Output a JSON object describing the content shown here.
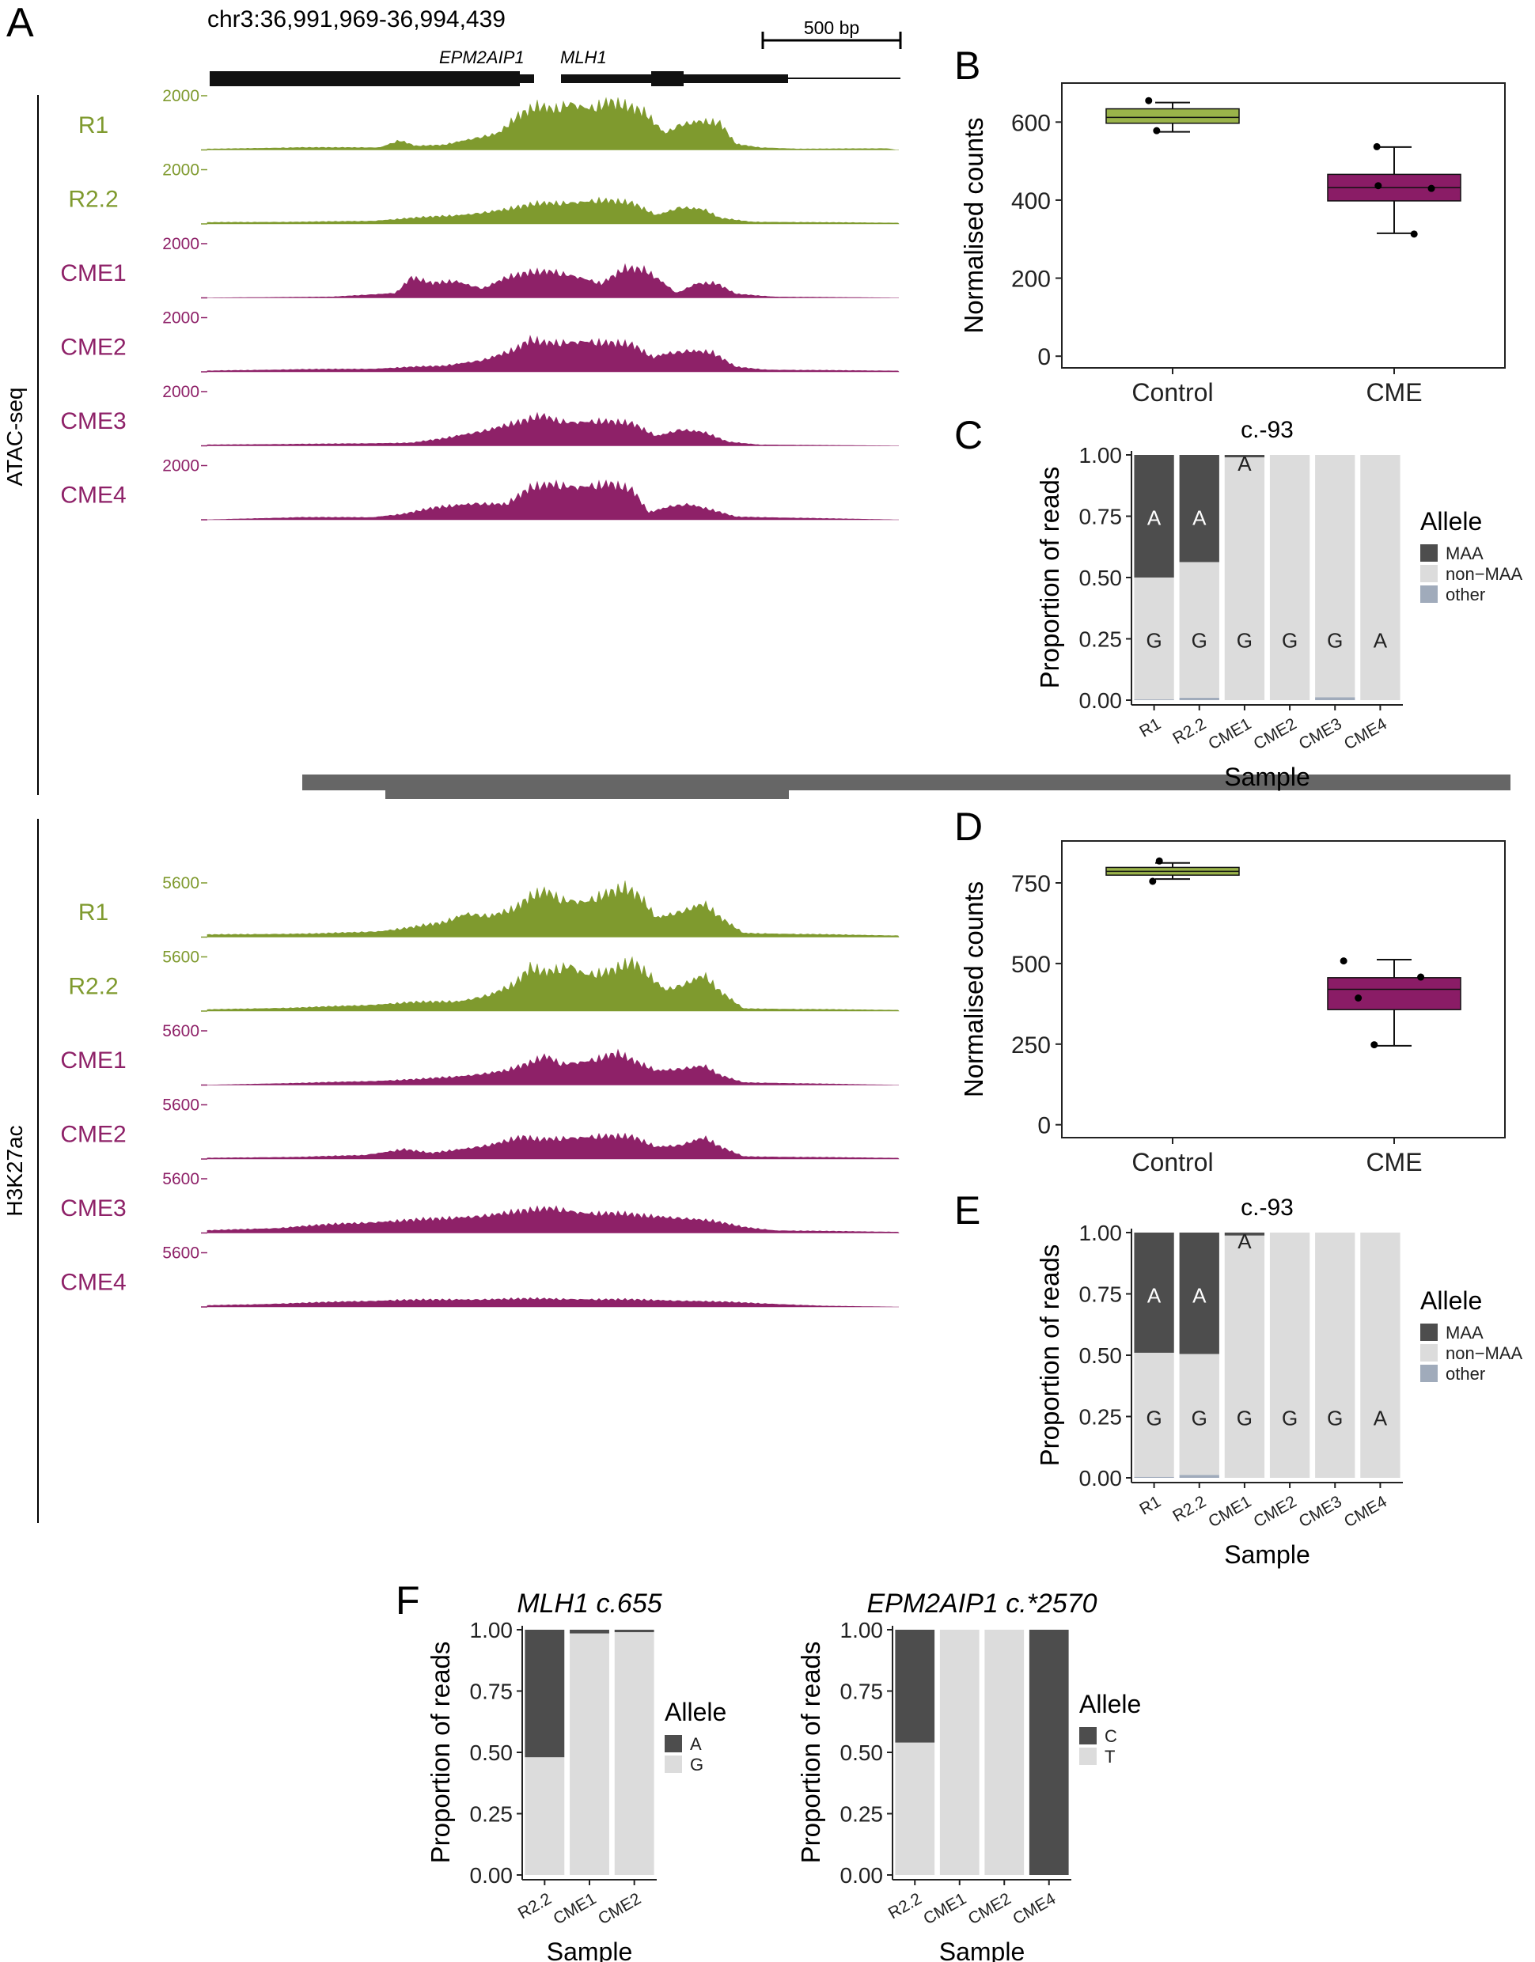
{
  "colors": {
    "control": "#7f9a2e",
    "cme": "#8e2168",
    "control_box": "#9ab34a",
    "cme_box": "#8a1c66",
    "maa": "#4d4d4d",
    "non_maa": "#dcdcdc",
    "other": "#a0abbb"
  },
  "panel_a": {
    "letter": "A",
    "coords": "chr3:36,991,969-36,994,439",
    "scale_label": "500 bp",
    "gene1": "EPM2AIP1",
    "gene2": "MLH1",
    "sections": [
      {
        "assay": "ATAC-seq",
        "scale_max": "2000",
        "tracks": [
          {
            "label": "R1",
            "group": "control",
            "shape": "atac_r1"
          },
          {
            "label": "R2.2",
            "group": "control",
            "shape": "atac_r22"
          },
          {
            "label": "CME1",
            "group": "cme",
            "shape": "atac_cme1"
          },
          {
            "label": "CME2",
            "group": "cme",
            "shape": "atac_cme2"
          },
          {
            "label": "CME3",
            "group": "cme",
            "shape": "atac_cme3"
          },
          {
            "label": "CME4",
            "group": "cme",
            "shape": "atac_cme4"
          }
        ]
      },
      {
        "assay": "H3K27ac",
        "scale_max": "5600",
        "tracks": [
          {
            "label": "R1",
            "group": "control",
            "shape": "k27_r1"
          },
          {
            "label": "R2.2",
            "group": "control",
            "shape": "k27_r22"
          },
          {
            "label": "CME1",
            "group": "cme",
            "shape": "k27_cme1"
          },
          {
            "label": "CME2",
            "group": "cme",
            "shape": "k27_cme2"
          },
          {
            "label": "CME3",
            "group": "cme",
            "shape": "k27_cme3"
          },
          {
            "label": "CME4",
            "group": "cme",
            "shape": "k27_cme4"
          }
        ]
      }
    ]
  },
  "chart_data": [
    {
      "id": "B",
      "type": "box",
      "letter": "B",
      "ylabel": "Normalised counts",
      "ylim": [
        -30,
        700
      ],
      "yticks": [
        0,
        200,
        400,
        600
      ],
      "categories": [
        "Control",
        "CME"
      ],
      "groups": [
        {
          "name": "Control",
          "color": "control_box",
          "min": 575,
          "q1": 597,
          "median": 612,
          "q3": 634,
          "max": 650,
          "points": [
            [
              -0.18,
              655
            ],
            [
              -0.12,
              578
            ]
          ]
        },
        {
          "name": "CME",
          "color": "cme_box",
          "min": 315,
          "q1": 398,
          "median": 432,
          "q3": 466,
          "max": 536,
          "points": [
            [
              -0.13,
              537
            ],
            [
              -0.12,
              437
            ],
            [
              0.28,
              430
            ],
            [
              0.15,
              313
            ]
          ]
        }
      ]
    },
    {
      "id": "C",
      "type": "stacked_bar",
      "letter": "C",
      "title": "c.-93",
      "xlabel": "Sample",
      "ylabel": "Proportion of reads",
      "categories": [
        "R1",
        "R2.2",
        "CME1",
        "CME2",
        "CME3",
        "CME4"
      ],
      "yticks": [
        "0.00",
        "0.25",
        "0.50",
        "0.75",
        "1.00"
      ],
      "legend_title": "Allele",
      "legend": [
        "MAA",
        "non−MAA",
        "other"
      ],
      "series": [
        {
          "name": "other",
          "color": "other",
          "values": [
            0.003,
            0.01,
            0.0,
            0.0,
            0.012,
            0.0
          ]
        },
        {
          "name": "non−MAA",
          "color": "non_maa",
          "values": [
            0.497,
            0.553,
            0.99,
            1.0,
            0.988,
            1.0
          ]
        },
        {
          "name": "MAA",
          "color": "maa",
          "values": [
            0.5,
            0.437,
            0.01,
            0.0,
            0.0,
            0.0
          ]
        }
      ],
      "labels_top": [
        "A",
        "A",
        "A",
        "",
        "",
        ""
      ],
      "labels_bottom": [
        "G",
        "G",
        "G",
        "G",
        "G",
        "A"
      ]
    },
    {
      "id": "D",
      "type": "box",
      "letter": "D",
      "ylabel": "Normalised counts",
      "ylim": [
        -40,
        880
      ],
      "yticks": [
        0,
        250,
        500,
        750
      ],
      "categories": [
        "Control",
        "CME"
      ],
      "groups": [
        {
          "name": "Control",
          "color": "control_box",
          "min": 762,
          "q1": 774,
          "median": 786,
          "q3": 798,
          "max": 812,
          "points": [
            [
              -0.1,
              818
            ],
            [
              -0.15,
              755
            ]
          ]
        },
        {
          "name": "CME",
          "color": "cme_box",
          "min": 245,
          "q1": 357,
          "median": 420,
          "q3": 456,
          "max": 512,
          "points": [
            [
              -0.38,
              508
            ],
            [
              -0.27,
              393
            ],
            [
              0.2,
              458
            ],
            [
              -0.15,
              248
            ]
          ]
        }
      ]
    },
    {
      "id": "E",
      "type": "stacked_bar",
      "letter": "E",
      "title": "c.-93",
      "xlabel": "Sample",
      "ylabel": "Proportion of reads",
      "categories": [
        "R1",
        "R2.2",
        "CME1",
        "CME2",
        "CME3",
        "CME4"
      ],
      "yticks": [
        "0.00",
        "0.25",
        "0.50",
        "0.75",
        "1.00"
      ],
      "legend_title": "Allele",
      "legend": [
        "MAA",
        "non−MAA",
        "other"
      ],
      "series": [
        {
          "name": "other",
          "color": "other",
          "values": [
            0.004,
            0.012,
            0.0,
            0.0,
            0.0,
            0.0
          ]
        },
        {
          "name": "non−MAA",
          "color": "non_maa",
          "values": [
            0.506,
            0.493,
            0.988,
            1.0,
            1.0,
            1.0
          ]
        },
        {
          "name": "MAA",
          "color": "maa",
          "values": [
            0.49,
            0.495,
            0.012,
            0.0,
            0.0,
            0.0
          ]
        }
      ],
      "labels_top": [
        "A",
        "A",
        "A",
        "",
        "",
        ""
      ],
      "labels_bottom": [
        "G",
        "G",
        "G",
        "G",
        "G",
        "A"
      ]
    },
    {
      "id": "F1",
      "type": "stacked_bar",
      "letter": "F",
      "title": "MLH1 c.655",
      "xlabel": "Sample",
      "ylabel": "Proportion of reads",
      "categories": [
        "R2.2",
        "CME1",
        "CME2"
      ],
      "yticks": [
        "0.00",
        "0.25",
        "0.50",
        "0.75",
        "1.00"
      ],
      "legend_title": "Allele",
      "legend": [
        "A",
        "G"
      ],
      "series": [
        {
          "name": "G",
          "color": "non_maa",
          "values": [
            0.48,
            0.985,
            0.99
          ]
        },
        {
          "name": "A",
          "color": "maa",
          "values": [
            0.52,
            0.015,
            0.01
          ]
        }
      ]
    },
    {
      "id": "F2",
      "type": "stacked_bar",
      "title": "EPM2AIP1 c.*2570",
      "xlabel": "Sample",
      "ylabel": "Proportion of reads",
      "categories": [
        "R2.2",
        "CME1",
        "CME2",
        "CME4"
      ],
      "yticks": [
        "0.00",
        "0.25",
        "0.50",
        "0.75",
        "1.00"
      ],
      "legend_title": "Allele",
      "legend": [
        "C",
        "T"
      ],
      "series": [
        {
          "name": "T",
          "color": "non_maa",
          "values": [
            0.54,
            1.0,
            1.0,
            0.0
          ]
        },
        {
          "name": "C",
          "color": "maa",
          "values": [
            0.46,
            0.0,
            0.0,
            1.0
          ]
        }
      ]
    }
  ]
}
